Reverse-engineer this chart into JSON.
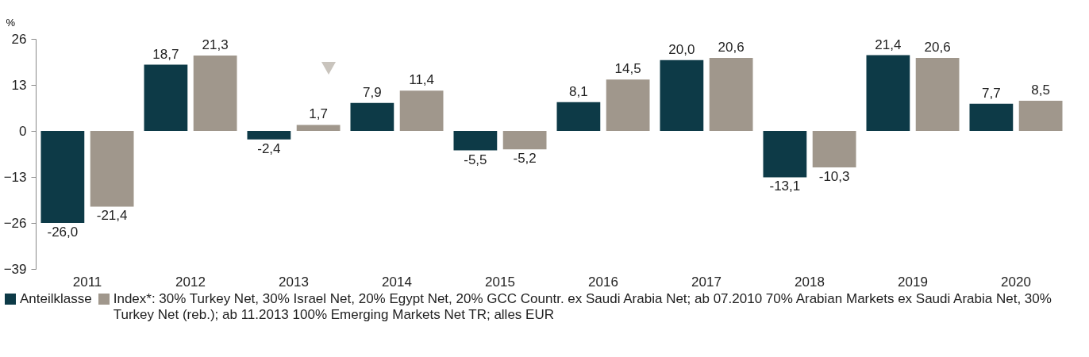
{
  "chart_data": {
    "type": "bar",
    "ylabel": "%",
    "categories": [
      "2011",
      "2012",
      "2013",
      "2014",
      "2015",
      "2016",
      "2017",
      "2018",
      "2019",
      "2020"
    ],
    "series": [
      {
        "name": "Anteilklasse",
        "color": "#0d3a47",
        "values": [
          -26.0,
          18.7,
          -2.4,
          7.9,
          -5.5,
          8.1,
          20.0,
          -13.1,
          21.4,
          7.7
        ],
        "value_labels": [
          "-26,0",
          "18,7",
          "-2,4",
          "7,9",
          "-5,5",
          "8,1",
          "20,0",
          "-13,1",
          "21,4",
          "7,7"
        ]
      },
      {
        "name": "Index*: 30% Turkey Net, 30% Israel Net, 20% Egypt Net, 20% GCC Countr. ex Saudi Arabia Net; ab 07.2010 70% Arabian Markets ex Saudi Arabia Net, 30% Turkey Net (reb.); ab 11.2013 100% Emerging Markets Net TR; alles EUR",
        "color": "#a0978c",
        "values": [
          -21.4,
          21.3,
          1.7,
          11.4,
          -5.2,
          14.5,
          20.6,
          -10.3,
          20.6,
          8.5
        ],
        "value_labels": [
          "-21,4",
          "21,3",
          "1,7",
          "11,4",
          "-5,2",
          "14,5",
          "20,6",
          "-10,3",
          "20,6",
          "8,5"
        ]
      }
    ],
    "ylim": [
      -39,
      26
    ],
    "yticks": [
      -39,
      -26,
      -13,
      0,
      13,
      26
    ],
    "legend": "bottom"
  }
}
